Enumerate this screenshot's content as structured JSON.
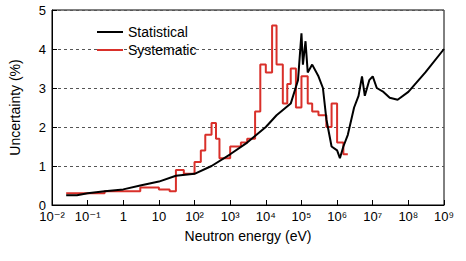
{
  "chart_data": {
    "type": "line",
    "x_label": "Neutron energy (eV)",
    "y_label": "Uncertainty (%)",
    "log": "x",
    "grid": "y",
    "legend": "upper left",
    "xlim": [
      0.01,
      1000000000
    ],
    "ylim": [
      0,
      5
    ],
    "xticks": [
      {
        "value": 0.01,
        "label": "10⁻²"
      },
      {
        "value": 0.1,
        "label": "10⁻¹"
      },
      1,
      10,
      {
        "value": 100,
        "label": "10²"
      },
      {
        "value": 1000,
        "label": "10³"
      },
      {
        "value": 10000,
        "label": "10⁴"
      },
      {
        "value": 100000,
        "label": "10⁵"
      },
      {
        "value": 1000000,
        "label": "10⁶"
      },
      {
        "value": 10000000,
        "label": "10⁷"
      },
      {
        "value": 100000000,
        "label": "10⁸"
      },
      {
        "value": 1000000000,
        "label": "10⁹"
      }
    ],
    "yticks": [
      0,
      1,
      2,
      3,
      4,
      5
    ],
    "series": [
      {
        "name": "Statistical",
        "color": "#000000",
        "line_style": "solid",
        "x": [
          0.025,
          0.05,
          0.1,
          0.3,
          1,
          3,
          10,
          30,
          100,
          300,
          1000,
          3000,
          10000,
          20000,
          50000,
          80000,
          100000,
          110000,
          130000,
          150000,
          200000,
          300000,
          400000,
          500000,
          700000,
          1000000,
          1200000,
          1500000,
          2000000,
          3000000,
          4000000,
          5000000,
          6000000,
          8000000,
          10000000,
          13000000,
          20000000,
          30000000,
          50000000,
          100000000,
          300000000,
          1000000000
        ],
        "values": [
          0.25,
          0.25,
          0.3,
          0.35,
          0.4,
          0.5,
          0.6,
          0.75,
          0.8,
          1.0,
          1.3,
          1.6,
          2.0,
          2.3,
          2.6,
          3.2,
          4.4,
          3.6,
          4.2,
          3.4,
          3.6,
          3.3,
          3.0,
          2.2,
          1.5,
          1.4,
          1.2,
          1.5,
          1.8,
          2.5,
          2.8,
          3.3,
          2.8,
          3.2,
          3.3,
          3.0,
          2.9,
          2.75,
          2.7,
          2.9,
          3.4,
          4.0
        ]
      },
      {
        "name": "Systematic",
        "color": "#d9302a",
        "line_style": "step",
        "x": [
          0.025,
          0.1,
          0.3,
          1,
          3,
          10,
          20,
          30,
          50,
          100,
          150,
          200,
          300,
          400,
          500,
          1000,
          2000,
          3000,
          5000,
          7000,
          10000,
          15000,
          20000,
          30000,
          40000,
          50000,
          70000,
          100000,
          150000,
          200000,
          300000,
          500000,
          700000,
          1000000,
          1500000,
          2000000
        ],
        "values": [
          0.3,
          0.3,
          0.35,
          0.35,
          0.45,
          0.4,
          0.35,
          0.9,
          0.8,
          1.1,
          1.4,
          1.8,
          2.1,
          1.7,
          1.2,
          1.5,
          1.6,
          1.7,
          2.4,
          3.6,
          3.4,
          4.6,
          3.6,
          2.6,
          3.1,
          3.5,
          2.5,
          3.3,
          2.6,
          2.4,
          2.3,
          2.0,
          2.6,
          1.6,
          1.3,
          1.3
        ]
      }
    ]
  }
}
